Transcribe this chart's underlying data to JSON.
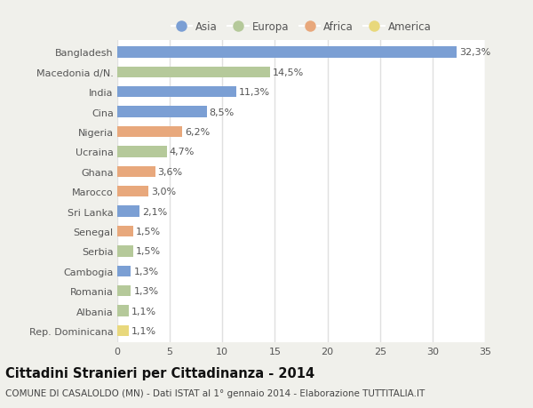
{
  "categories": [
    "Bangladesh",
    "Macedonia d/N.",
    "India",
    "Cina",
    "Nigeria",
    "Ucraina",
    "Ghana",
    "Marocco",
    "Sri Lanka",
    "Senegal",
    "Serbia",
    "Cambogia",
    "Romania",
    "Albania",
    "Rep. Dominicana"
  ],
  "values": [
    32.3,
    14.5,
    11.3,
    8.5,
    6.2,
    4.7,
    3.6,
    3.0,
    2.1,
    1.5,
    1.5,
    1.3,
    1.3,
    1.1,
    1.1
  ],
  "labels": [
    "32,3%",
    "14,5%",
    "11,3%",
    "8,5%",
    "6,2%",
    "4,7%",
    "3,6%",
    "3,0%",
    "2,1%",
    "1,5%",
    "1,5%",
    "1,3%",
    "1,3%",
    "1,1%",
    "1,1%"
  ],
  "continents": [
    "Asia",
    "Europa",
    "Asia",
    "Asia",
    "Africa",
    "Europa",
    "Africa",
    "Africa",
    "Asia",
    "Africa",
    "Europa",
    "Asia",
    "Europa",
    "Europa",
    "America"
  ],
  "continent_colors": {
    "Asia": "#7b9fd4",
    "Europa": "#b5c99a",
    "Africa": "#e8a87c",
    "America": "#e8d87c"
  },
  "legend_order": [
    "Asia",
    "Europa",
    "Africa",
    "America"
  ],
  "xlim": [
    0,
    35
  ],
  "xticks": [
    0,
    5,
    10,
    15,
    20,
    25,
    30,
    35
  ],
  "title1": "Cittadini Stranieri per Cittadinanza - 2014",
  "title2": "COMUNE DI CASALOLDO (MN) - Dati ISTAT al 1° gennaio 2014 - Elaborazione TUTTITALIA.IT",
  "fig_background": "#f0f0eb",
  "plot_background": "#ffffff",
  "bar_height": 0.55,
  "label_fontsize": 8,
  "ytick_fontsize": 8,
  "xtick_fontsize": 8,
  "grid_color": "#e0e0e0",
  "title1_fontsize": 10.5,
  "title2_fontsize": 7.5,
  "text_color": "#555555"
}
